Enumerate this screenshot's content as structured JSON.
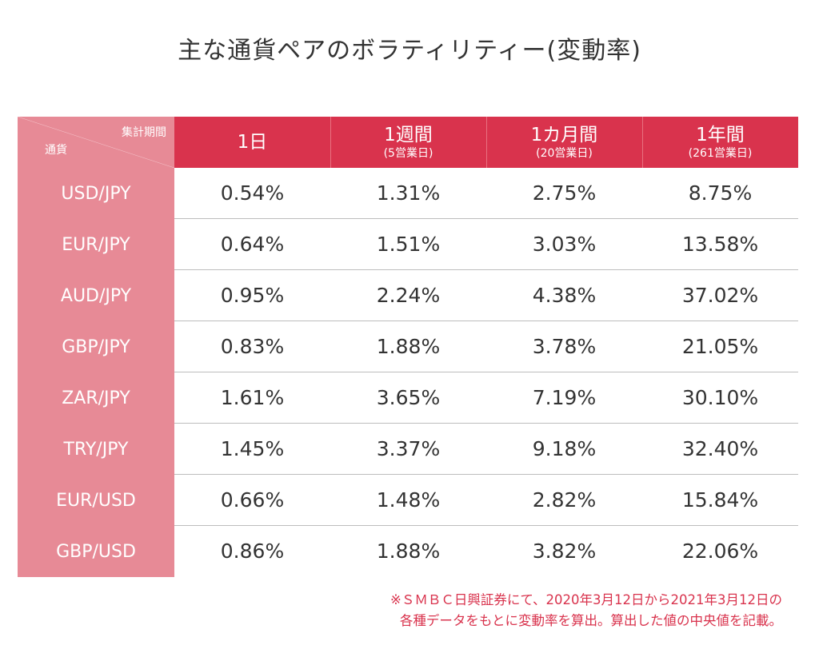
{
  "chart_data": {
    "type": "table",
    "title": "主な通貨ペアのボラティリティー(変動率)",
    "corner": {
      "top": "集計期間",
      "bottom": "通貨"
    },
    "columns": [
      {
        "label": "1日",
        "sub": ""
      },
      {
        "label": "1週間",
        "sub": "(5営業日)"
      },
      {
        "label": "1カ月間",
        "sub": "(20営業日)"
      },
      {
        "label": "1年間",
        "sub": "(261営業日)"
      }
    ],
    "rows": [
      {
        "pair": "USD/JPY",
        "values": [
          "0.54%",
          "1.31%",
          "2.75%",
          "8.75%"
        ]
      },
      {
        "pair": "EUR/JPY",
        "values": [
          "0.64%",
          "1.51%",
          "3.03%",
          "13.58%"
        ]
      },
      {
        "pair": "AUD/JPY",
        "values": [
          "0.95%",
          "2.24%",
          "4.38%",
          "37.02%"
        ]
      },
      {
        "pair": "GBP/JPY",
        "values": [
          "0.83%",
          "1.88%",
          "3.78%",
          "21.05%"
        ]
      },
      {
        "pair": "ZAR/JPY",
        "values": [
          "1.61%",
          "3.65%",
          "7.19%",
          "30.10%"
        ]
      },
      {
        "pair": "TRY/JPY",
        "values": [
          "1.45%",
          "3.37%",
          "9.18%",
          "32.40%"
        ]
      },
      {
        "pair": "EUR/USD",
        "values": [
          "0.66%",
          "1.48%",
          "2.82%",
          "15.84%"
        ]
      },
      {
        "pair": "GBP/USD",
        "values": [
          "0.86%",
          "1.88%",
          "3.82%",
          "22.06%"
        ]
      }
    ],
    "note": [
      "※ＳＭＢＣ日興証券にて、2020年3月12日から2021年3月12日の",
      "各種データをもとに変動率を算出。算出した値の中央値を記載。"
    ],
    "colors": {
      "header": "#d9334d",
      "pair_column": "#e78a96",
      "note": "#d9334d"
    }
  }
}
